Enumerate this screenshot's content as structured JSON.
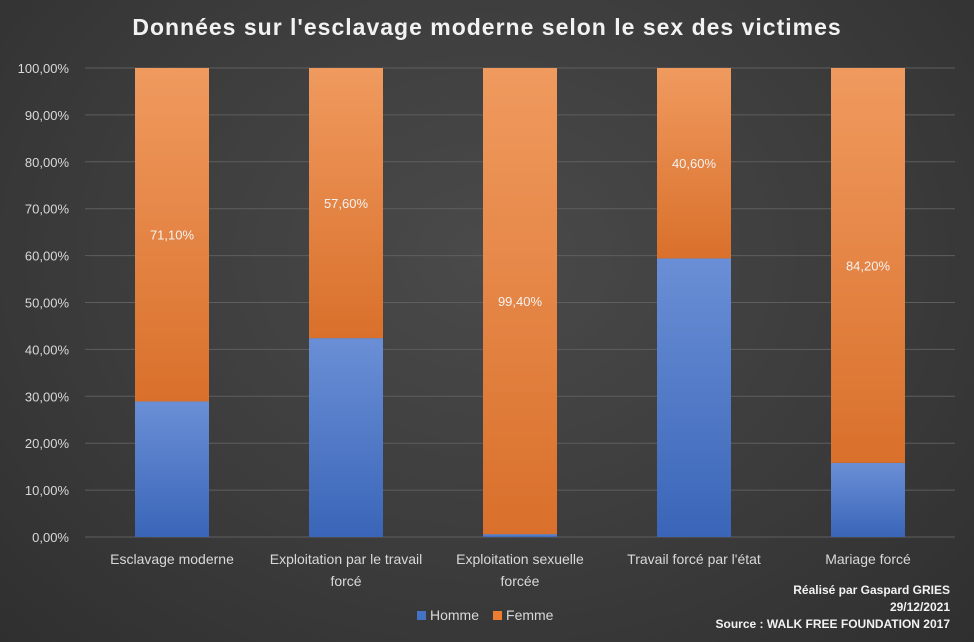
{
  "chart_data": {
    "type": "bar",
    "stacked": true,
    "title": "Données sur l'esclavage moderne selon le sex des victimes",
    "categories": [
      [
        "Esclavage moderne"
      ],
      [
        "Exploitation par le travail",
        "forcé"
      ],
      [
        "Exploitation sexuelle",
        "forcée"
      ],
      [
        "Travail forcé par l'état"
      ],
      [
        "Mariage forcé"
      ]
    ],
    "series": [
      {
        "name": "Homme",
        "color": "#4472c4",
        "values": [
          28.9,
          42.4,
          0.6,
          59.4,
          15.8
        ]
      },
      {
        "name": "Femme",
        "color": "#ed7d31",
        "values": [
          71.1,
          57.6,
          99.4,
          40.6,
          84.2
        ]
      }
    ],
    "data_labels": [
      "71,10%",
      "57,60%",
      "99,40%",
      "40,60%",
      "84,20%"
    ],
    "yticks": [
      "0,00%",
      "10,00%",
      "20,00%",
      "30,00%",
      "40,00%",
      "50,00%",
      "60,00%",
      "70,00%",
      "80,00%",
      "90,00%",
      "100,00%"
    ],
    "ylim": [
      0,
      100
    ],
    "grid": true,
    "legend": "bottom"
  },
  "credits": {
    "author": "Réalisé par Gaspard GRIES",
    "date": "29/12/2021",
    "source": "Source : WALK FREE FOUNDATION 2017"
  }
}
